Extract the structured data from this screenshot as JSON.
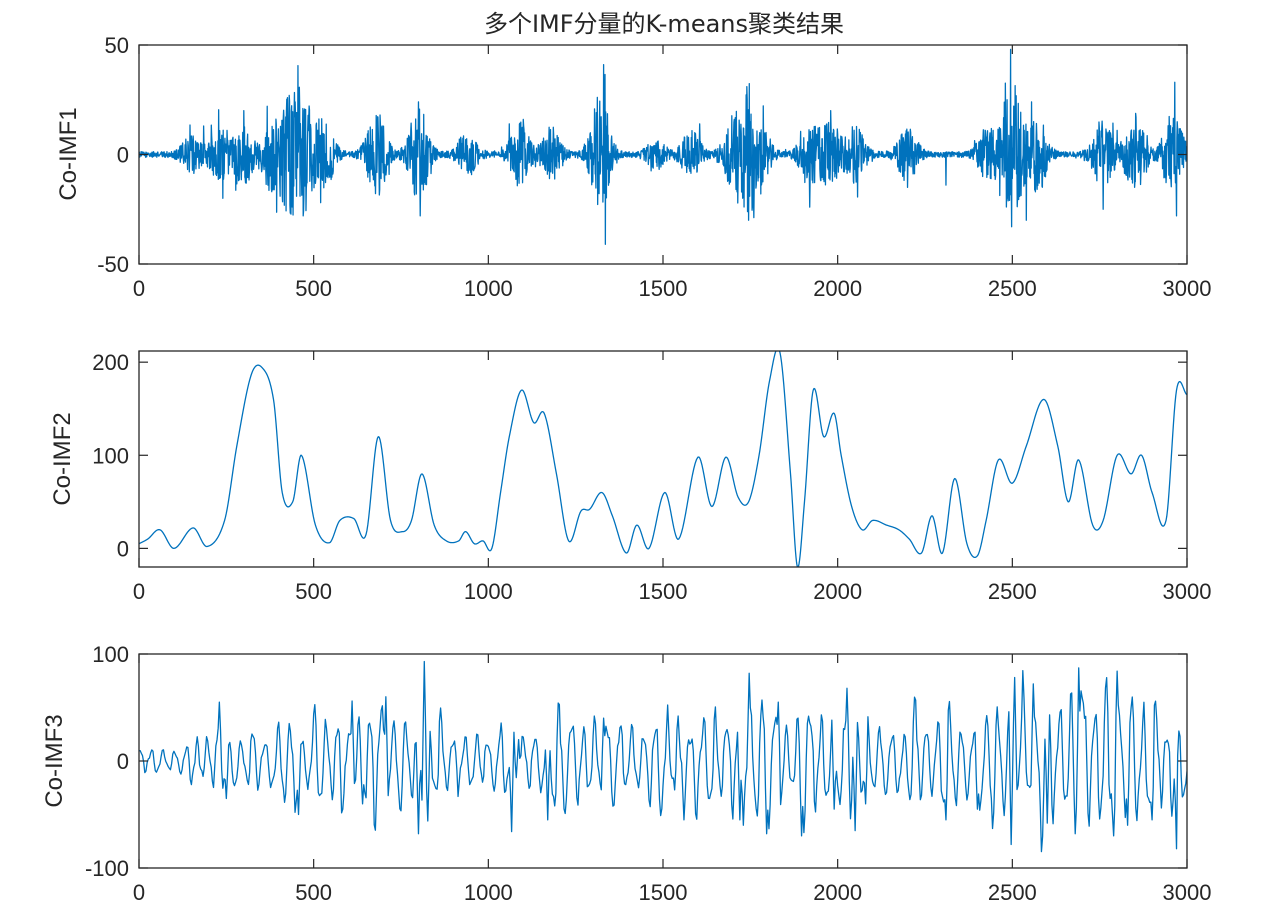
{
  "chart_data": [
    {
      "type": "line",
      "title": "多个IMF分量的K-means聚类结果",
      "xlabel": "",
      "ylabel": "Co-IMF1",
      "xlim": [
        0,
        3000
      ],
      "ylim": [
        -50,
        50
      ],
      "xticks": [
        "0",
        "500",
        "1000",
        "1500",
        "2000",
        "2500",
        "3000"
      ],
      "yticks": [
        "-50",
        "0",
        "50"
      ],
      "grid": false,
      "color": "#0072BD",
      "series": [
        {
          "style": "noise",
          "n": 3000,
          "bursts": [
            [
              150,
              8
            ],
            [
              230,
              12
            ],
            [
              300,
              13
            ],
            [
              380,
              14
            ],
            [
              430,
              22
            ],
            [
              470,
              24
            ],
            [
              530,
              16
            ],
            [
              680,
              20
            ],
            [
              800,
              22
            ],
            [
              940,
              10
            ],
            [
              1090,
              14
            ],
            [
              1180,
              12
            ],
            [
              1320,
              28
            ],
            [
              1480,
              6
            ],
            [
              1580,
              10
            ],
            [
              1700,
              14
            ],
            [
              1740,
              22
            ],
            [
              1780,
              12
            ],
            [
              1920,
              14
            ],
            [
              1980,
              14
            ],
            [
              2050,
              12
            ],
            [
              2200,
              12
            ],
            [
              2430,
              12
            ],
            [
              2500,
              30
            ],
            [
              2570,
              18
            ],
            [
              2760,
              16
            ],
            [
              2850,
              18
            ],
            [
              2960,
              20
            ]
          ],
          "spikes": [
            [
              185,
              13
            ],
            [
              240,
              -20
            ],
            [
              300,
              20
            ],
            [
              380,
              -17
            ],
            [
              430,
              27
            ],
            [
              470,
              -28
            ],
            [
              520,
              -22
            ],
            [
              690,
              18
            ],
            [
              800,
              24
            ],
            [
              805,
              -28
            ],
            [
              1060,
              14
            ],
            [
              1100,
              16
            ],
            [
              1330,
              41
            ],
            [
              1335,
              -41
            ],
            [
              1605,
              14
            ],
            [
              1700,
              -8
            ],
            [
              1740,
              31
            ],
            [
              1745,
              -30
            ],
            [
              1780,
              -18
            ],
            [
              1920,
              -24
            ],
            [
              1980,
              20
            ],
            [
              2200,
              -15
            ],
            [
              2310,
              -14
            ],
            [
              2495,
              48
            ],
            [
              2498,
              -33
            ],
            [
              2540,
              -30
            ],
            [
              2555,
              24
            ],
            [
              2760,
              -25
            ],
            [
              2800,
              11
            ],
            [
              2965,
              33
            ],
            [
              2970,
              -28
            ]
          ]
        }
      ]
    },
    {
      "type": "line",
      "xlabel": "",
      "ylabel": "Co-IMF2",
      "xlim": [
        0,
        3000
      ],
      "ylim": [
        -20,
        212
      ],
      "xticks": [
        "0",
        "500",
        "1000",
        "1500",
        "2000",
        "2500",
        "3000"
      ],
      "yticks": [
        "0",
        "100",
        "200"
      ],
      "grid": false,
      "color": "#0072BD",
      "series": [
        {
          "style": "smooth",
          "x": [
            0,
            25,
            60,
            100,
            155,
            195,
            245,
            280,
            320,
            350,
            385,
            410,
            440,
            465,
            505,
            545,
            575,
            615,
            650,
            685,
            720,
            755,
            780,
            810,
            845,
            880,
            915,
            935,
            960,
            985,
            1010,
            1035,
            1060,
            1095,
            1130,
            1160,
            1195,
            1230,
            1265,
            1290,
            1325,
            1355,
            1395,
            1425,
            1460,
            1505,
            1545,
            1600,
            1640,
            1680,
            1715,
            1745,
            1775,
            1805,
            1835,
            1865,
            1885,
            1905,
            1930,
            1960,
            1990,
            2010,
            2040,
            2070,
            2100,
            2140,
            2175,
            2205,
            2240,
            2270,
            2300,
            2335,
            2370,
            2400,
            2425,
            2460,
            2500,
            2540,
            2590,
            2630,
            2660,
            2690,
            2730,
            2760,
            2800,
            2840,
            2870,
            2900,
            2940,
            2970,
            3000
          ],
          "y": [
            5,
            10,
            20,
            0,
            22,
            2,
            30,
            110,
            185,
            195,
            160,
            60,
            50,
            100,
            25,
            6,
            30,
            32,
            15,
            120,
            30,
            18,
            30,
            80,
            25,
            8,
            8,
            18,
            5,
            8,
            0,
            60,
            120,
            170,
            135,
            145,
            80,
            8,
            40,
            42,
            60,
            35,
            -5,
            25,
            0,
            60,
            10,
            98,
            45,
            98,
            55,
            50,
            100,
            180,
            210,
            80,
            -20,
            50,
            170,
            120,
            145,
            100,
            45,
            20,
            30,
            25,
            20,
            10,
            -5,
            35,
            -5,
            75,
            5,
            -8,
            30,
            95,
            70,
            110,
            160,
            110,
            50,
            95,
            25,
            30,
            100,
            80,
            100,
            60,
            30,
            170,
            165
          ]
        }
      ]
    },
    {
      "type": "line",
      "xlabel": "",
      "ylabel": "Co-IMF3",
      "xlim": [
        0,
        3000
      ],
      "ylim": [
        -100,
        100
      ],
      "xticks": [
        "0",
        "500",
        "1000",
        "1500",
        "2000",
        "2500",
        "3000"
      ],
      "yticks": [
        "-100",
        "0",
        "100"
      ],
      "grid": false,
      "color": "#0072BD",
      "series": [
        {
          "style": "oscillation",
          "n": 900,
          "envelope_x": [
            0,
            200,
            400,
            600,
            800,
            1000,
            1200,
            1400,
            1600,
            1800,
            2000,
            2200,
            2400,
            2600,
            2800,
            3000
          ],
          "envelope_y": [
            12,
            22,
            40,
            45,
            55,
            30,
            45,
            30,
            55,
            50,
            45,
            45,
            60,
            70,
            60,
            55
          ],
          "extrema": [
            [
              230,
              55
            ],
            [
              250,
              -35
            ],
            [
              455,
              -50
            ],
            [
              610,
              56
            ],
            [
              640,
              -40
            ],
            [
              705,
              60
            ],
            [
              800,
              -68
            ],
            [
              815,
              93
            ],
            [
              825,
              -56
            ],
            [
              1065,
              -66
            ],
            [
              1085,
              20
            ],
            [
              1170,
              -55
            ],
            [
              1330,
              40
            ],
            [
              1560,
              -55
            ],
            [
              1720,
              -55
            ],
            [
              1730,
              -60
            ],
            [
              1745,
              82
            ],
            [
              1795,
              -68
            ],
            [
              1830,
              55
            ],
            [
              1895,
              -70
            ],
            [
              1990,
              -45
            ],
            [
              2025,
              68
            ],
            [
              2050,
              -65
            ],
            [
              2080,
              -40
            ],
            [
              2310,
              -55
            ],
            [
              2400,
              -45
            ],
            [
              2495,
              -78
            ],
            [
              2505,
              78
            ],
            [
              2560,
              72
            ],
            [
              2600,
              -58
            ],
            [
              2680,
              -68
            ],
            [
              2690,
              87
            ],
            [
              2780,
              -35
            ],
            [
              2790,
              -70
            ],
            [
              2800,
              84
            ],
            [
              2830,
              -60
            ],
            [
              2900,
              -55
            ],
            [
              2970,
              -82
            ],
            [
              2975,
              28
            ]
          ]
        }
      ]
    }
  ]
}
